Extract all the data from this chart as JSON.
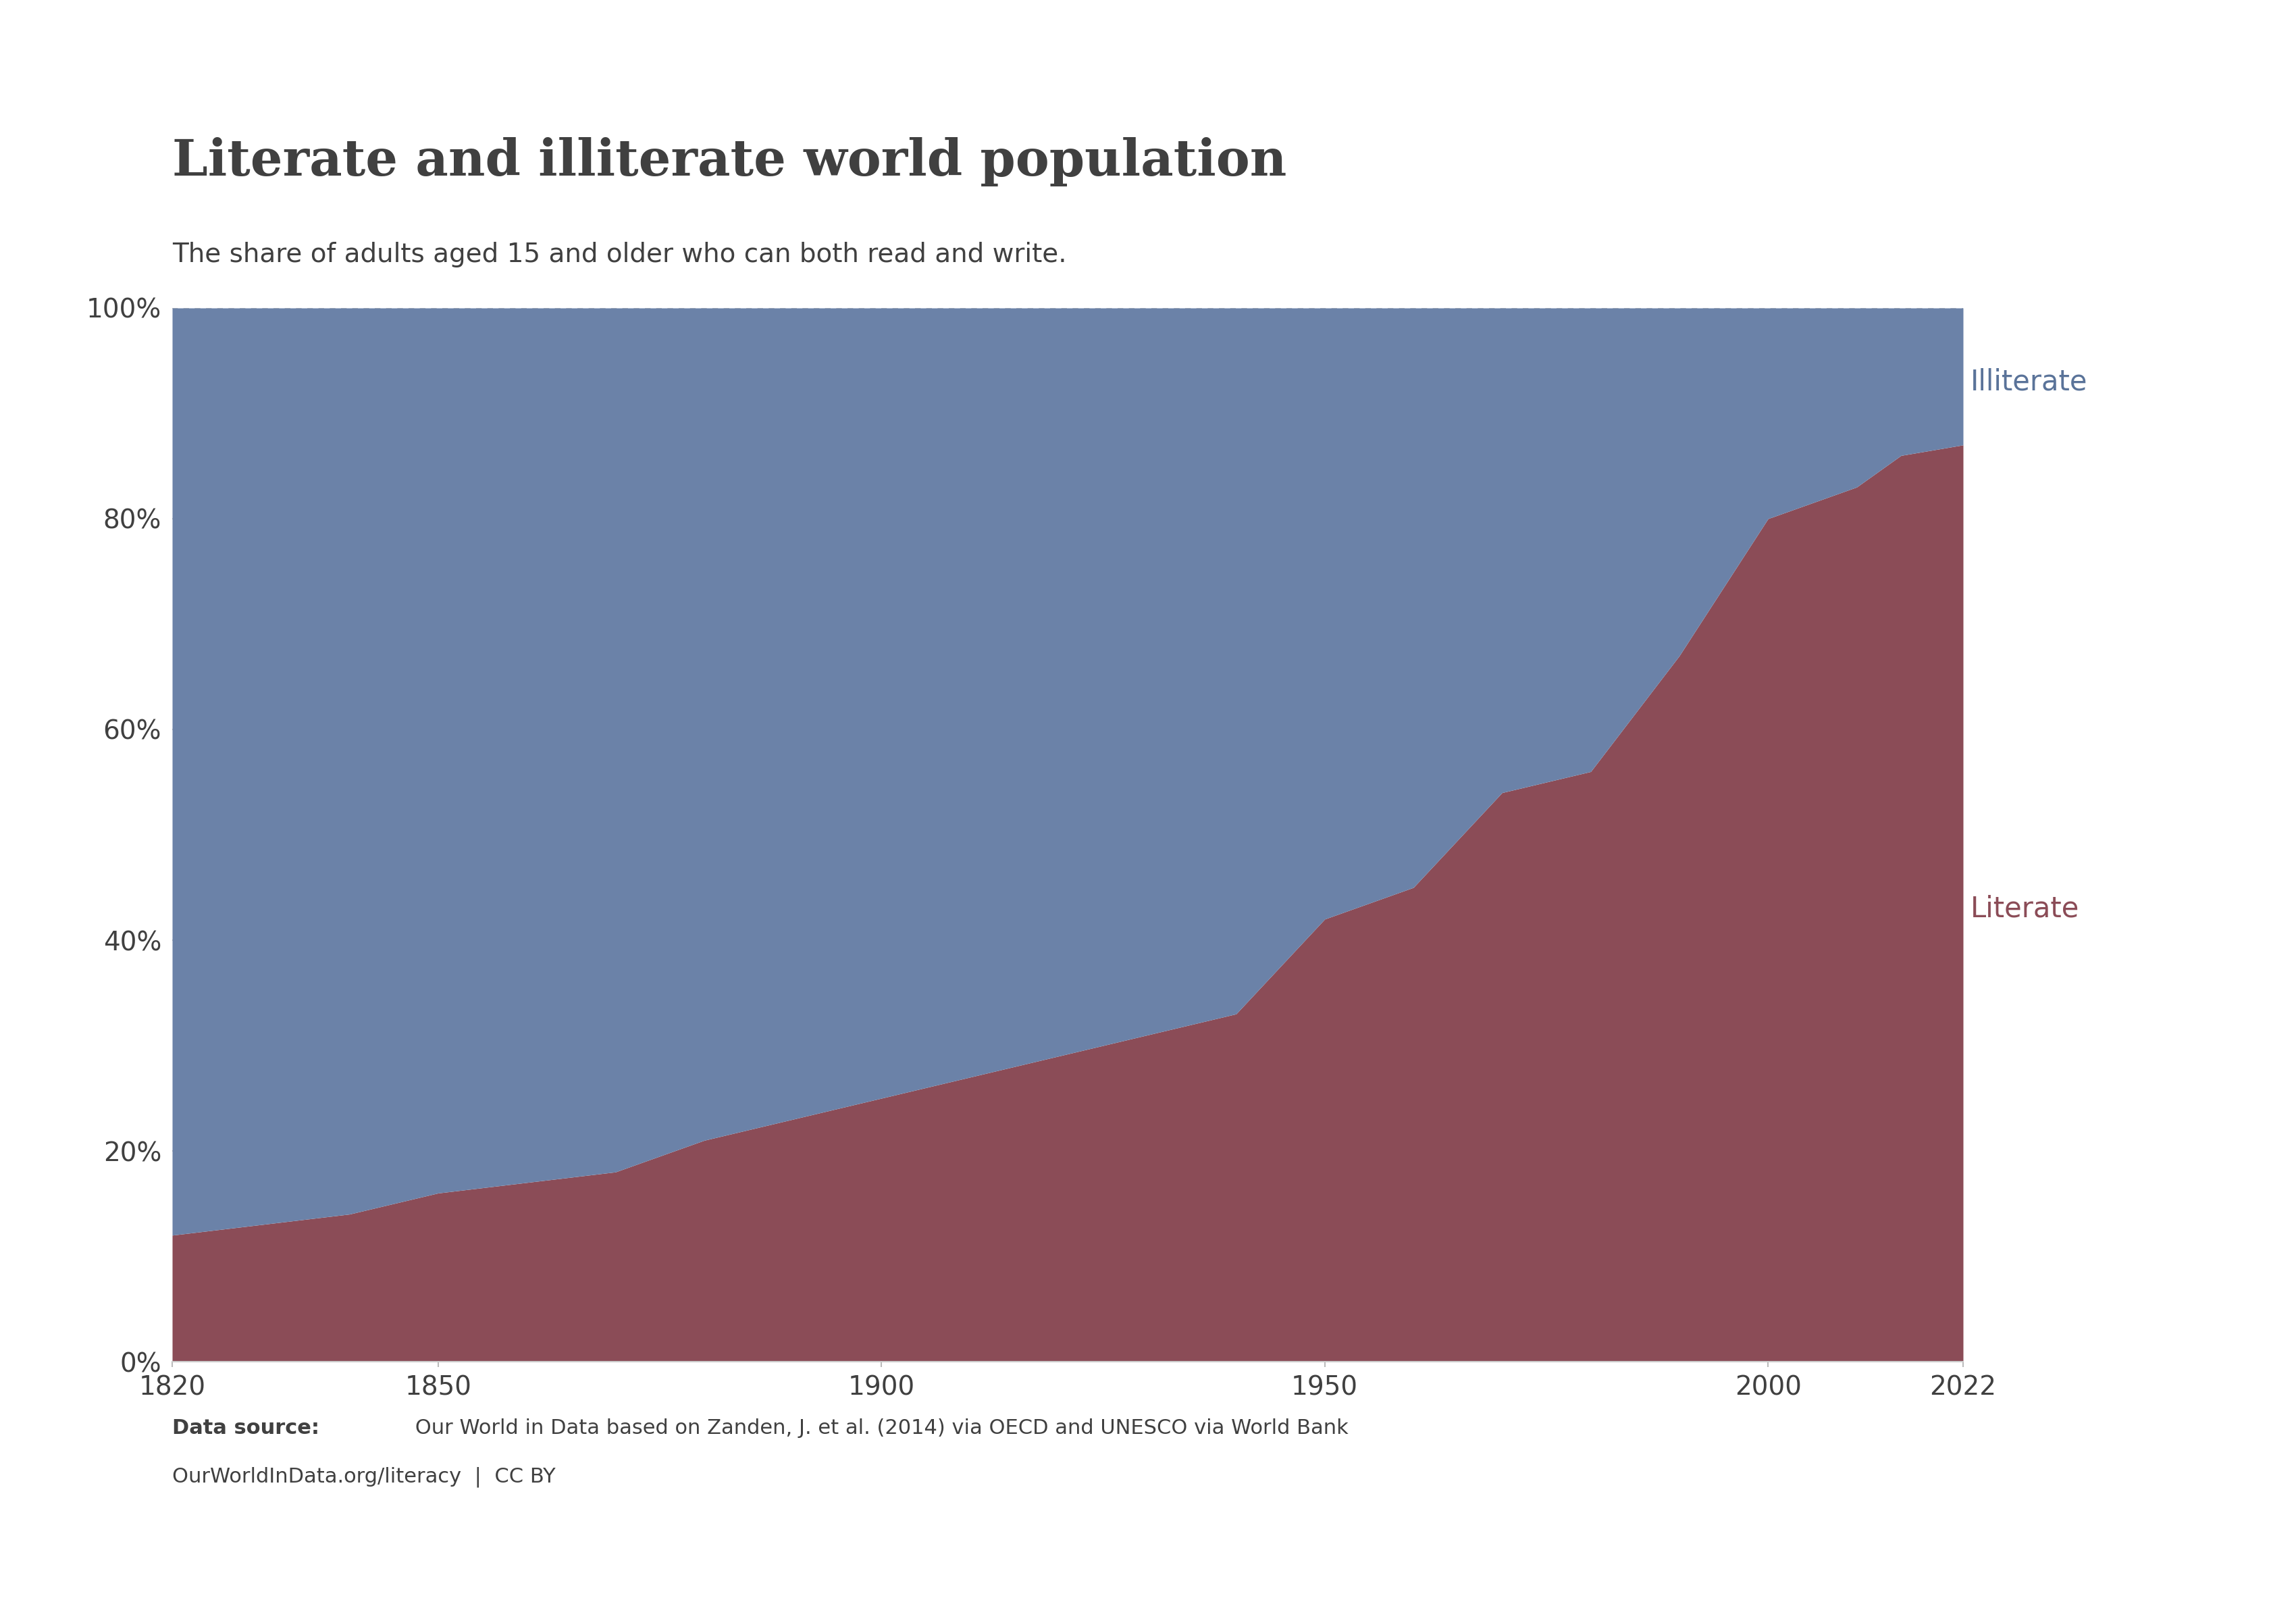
{
  "title": "Literate and illiterate world population",
  "subtitle": "The share of adults aged 15 and older who can both read and write.",
  "source_bold": "Data source:",
  "source_line1": " Our World in Data based on Zanden, J. et al. (2014) via OECD and UNESCO via World Bank",
  "source_line2": "OurWorldInData.org/literacy  |  CC BY",
  "years": [
    1820,
    1830,
    1840,
    1850,
    1860,
    1870,
    1880,
    1890,
    1900,
    1910,
    1920,
    1930,
    1940,
    1950,
    1960,
    1970,
    1980,
    1990,
    2000,
    2010,
    2015,
    2022
  ],
  "literate_pct": [
    12,
    13,
    14,
    16,
    17,
    18,
    21,
    23,
    25,
    27,
    29,
    31,
    33,
    42,
    45,
    54,
    56,
    67,
    80,
    83,
    86,
    87
  ],
  "illiterate_color": "#6b82a8",
  "literate_color": "#8b4c57",
  "background_color": "#ffffff",
  "grid_color": "#b0b0b0",
  "title_color": "#404040",
  "subtitle_color": "#404040",
  "source_color": "#404040",
  "label_illiterate_color": "#5a7399",
  "label_literate_color": "#8b4c57",
  "owid_box_dark": "#1a3a5c",
  "owid_box_red": "#c0392b",
  "owid_text_color": "#ffffff",
  "ytick_values": [
    0,
    20,
    40,
    60,
    80,
    100
  ],
  "ytick_labels": [
    "0%",
    "20%",
    "40%",
    "60%",
    "80%",
    "100%"
  ],
  "xtick_values": [
    1820,
    1850,
    1900,
    1950,
    2000,
    2022
  ],
  "xtick_labels": [
    "1820",
    "1850",
    "1900",
    "1950",
    "2000",
    "2022"
  ]
}
